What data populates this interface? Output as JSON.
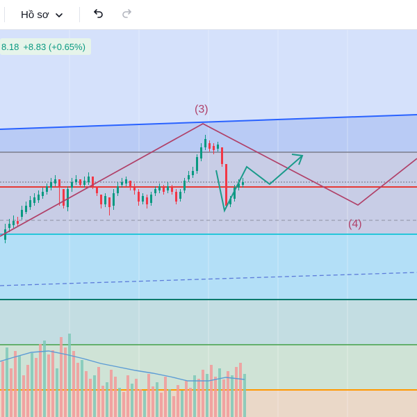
{
  "toolbar": {
    "profile_label": "Hồ sơ",
    "profile_chevron_icon": "chevron-down-icon",
    "undo_icon": "undo-icon",
    "redo_icon": "redo-icon",
    "redo_enabled": false
  },
  "quote": {
    "price_partial": "8.18",
    "change": "+8.83 (+0.65%)",
    "color": "#089981"
  },
  "annotations": {
    "wave_3_label": "(3)",
    "wave_4_label": "(4)"
  },
  "colors": {
    "up_candle": "#089981",
    "down_candle": "#f23645",
    "wave_path": "#b04068",
    "projection_path": "#1a9a8a",
    "channel_line": "#2962ff",
    "support_line": "#e53935",
    "cyan_line": "#26c6da",
    "dark_teal_line": "#00796b",
    "green_line": "#43a047",
    "orange_line": "#ff9800",
    "volume_avg_line": "#5b9bd5"
  }
}
